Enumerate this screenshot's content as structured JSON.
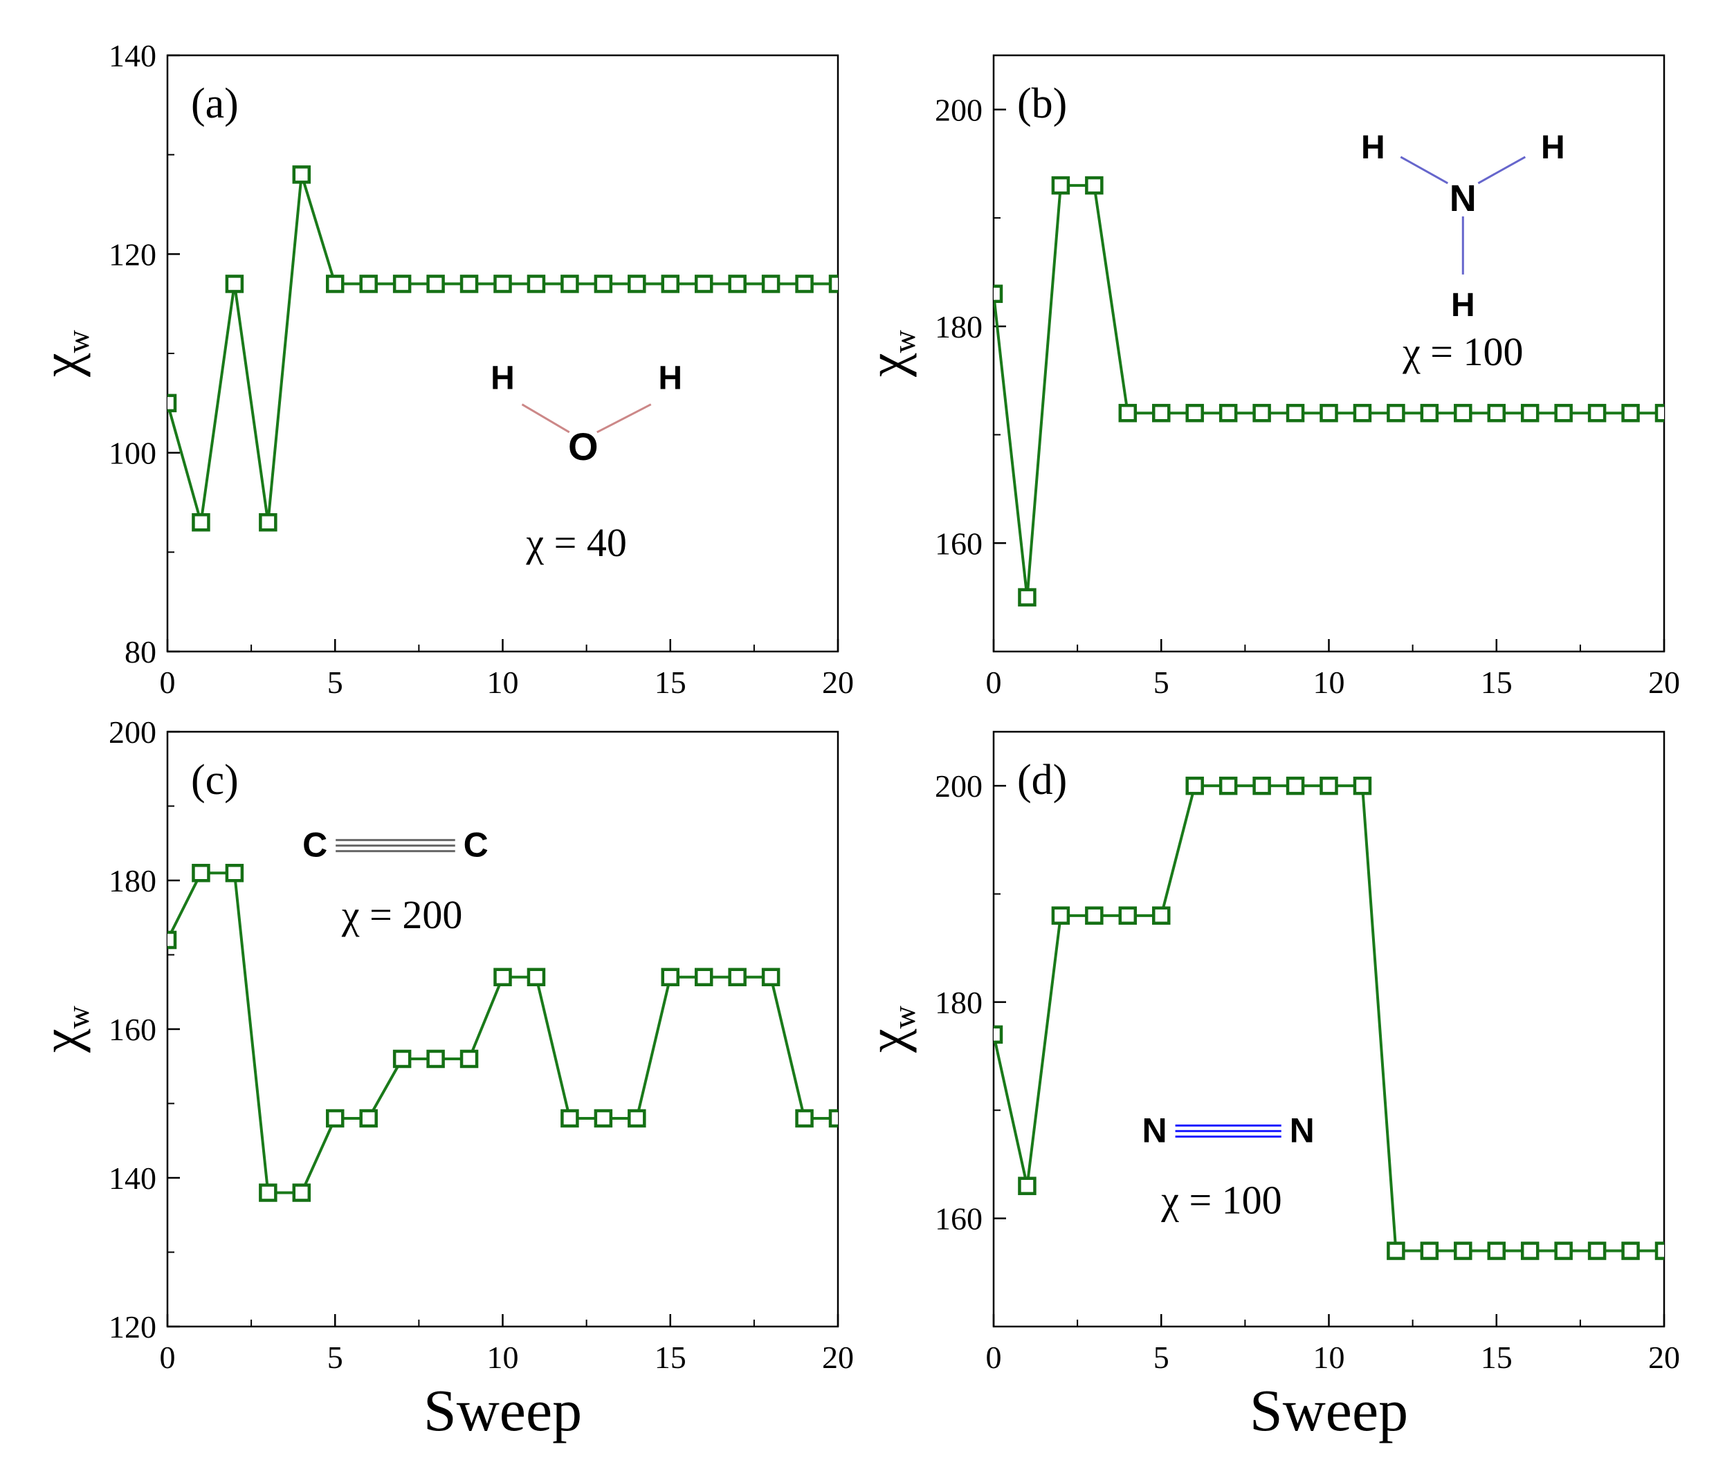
{
  "figure": {
    "xlabel": "Sweep",
    "ylabel_main": "χ",
    "ylabel_sub": "w",
    "line_color": "#1a7a1a",
    "line_color_dark": "#157015"
  },
  "chart_data": [
    {
      "type": "line",
      "panel_label": "(a)",
      "annotation": "χ = 40",
      "molecule": {
        "atoms": [
          {
            "symbol": "H",
            "color": "#5f7a7a"
          },
          {
            "symbol": "O",
            "color": "#ff1a1a"
          },
          {
            "symbol": "H",
            "color": "#5f7a7a"
          }
        ]
      },
      "xlim": [
        0,
        20
      ],
      "ylim": [
        80,
        140
      ],
      "xticks": [
        0,
        5,
        10,
        15,
        20
      ],
      "xtick_labels": [
        "0",
        "5",
        "10",
        "15",
        "20"
      ],
      "yticks": [
        80,
        100,
        120,
        140
      ],
      "ytick_labels": [
        "80",
        "100",
        "120",
        "140"
      ],
      "xlabel": "",
      "series": [
        {
          "x": [
            0,
            1,
            2,
            3,
            4,
            5,
            6,
            7,
            8,
            9,
            10,
            11,
            12,
            13,
            14,
            15,
            16,
            17,
            18,
            19,
            20
          ],
          "values": [
            105,
            93,
            117,
            93,
            128,
            117,
            117,
            117,
            117,
            117,
            117,
            117,
            117,
            117,
            117,
            117,
            117,
            117,
            117,
            117,
            117
          ]
        }
      ]
    },
    {
      "type": "line",
      "panel_label": "(b)",
      "annotation": "χ = 100",
      "molecule": {
        "atoms": [
          {
            "symbol": "H",
            "color": "#5f7a7a"
          },
          {
            "symbol": "H",
            "color": "#5f7a7a"
          },
          {
            "symbol": "N",
            "color": "#1a1aff"
          },
          {
            "symbol": "H",
            "color": "#5f7a7a"
          }
        ]
      },
      "xlim": [
        0,
        20
      ],
      "ylim": [
        150,
        205
      ],
      "xticks": [
        0,
        5,
        10,
        15,
        20
      ],
      "xtick_labels": [
        "0",
        "5",
        "10",
        "15",
        "20"
      ],
      "yticks": [
        160,
        180,
        200
      ],
      "ytick_labels": [
        "160",
        "180",
        "200"
      ],
      "xlabel": "",
      "series": [
        {
          "x": [
            0,
            1,
            2,
            3,
            4,
            5,
            6,
            7,
            8,
            9,
            10,
            11,
            12,
            13,
            14,
            15,
            16,
            17,
            18,
            19,
            20
          ],
          "values": [
            183,
            155,
            193,
            193,
            172,
            172,
            172,
            172,
            172,
            172,
            172,
            172,
            172,
            172,
            172,
            172,
            172,
            172,
            172,
            172,
            172
          ]
        }
      ]
    },
    {
      "type": "line",
      "panel_label": "(c)",
      "annotation": "χ = 200",
      "molecule": {
        "atoms": [
          {
            "symbol": "C",
            "color": "#3d4f4f"
          },
          {
            "symbol": "C",
            "color": "#3d4f4f"
          }
        ]
      },
      "xlim": [
        0,
        20
      ],
      "ylim": [
        120,
        200
      ],
      "xticks": [
        0,
        5,
        10,
        15,
        20
      ],
      "xtick_labels": [
        "0",
        "5",
        "10",
        "15",
        "20"
      ],
      "yticks": [
        120,
        140,
        160,
        180,
        200
      ],
      "ytick_labels": [
        "120",
        "140",
        "160",
        "180",
        "200"
      ],
      "xlabel": "Sweep",
      "series": [
        {
          "x": [
            0,
            1,
            2,
            3,
            4,
            5,
            6,
            7,
            8,
            9,
            10,
            11,
            12,
            13,
            14,
            15,
            16,
            17,
            18,
            19,
            20
          ],
          "values": [
            172,
            181,
            181,
            138,
            138,
            148,
            148,
            156,
            156,
            156,
            167,
            167,
            148,
            148,
            148,
            167,
            167,
            167,
            167,
            148,
            148
          ]
        }
      ]
    },
    {
      "type": "line",
      "panel_label": "(d)",
      "annotation": "χ = 100",
      "molecule": {
        "atoms": [
          {
            "symbol": "N",
            "color": "#1a1aff"
          },
          {
            "symbol": "N",
            "color": "#1a1aff"
          }
        ]
      },
      "xlim": [
        0,
        20
      ],
      "ylim": [
        150,
        205
      ],
      "xticks": [
        0,
        5,
        10,
        15,
        20
      ],
      "xtick_labels": [
        "0",
        "5",
        "10",
        "15",
        "20"
      ],
      "yticks": [
        160,
        180,
        200
      ],
      "ytick_labels": [
        "160",
        "180",
        "200"
      ],
      "xlabel": "Sweep",
      "series": [
        {
          "x": [
            0,
            1,
            2,
            3,
            4,
            5,
            6,
            7,
            8,
            9,
            10,
            11,
            12,
            13,
            14,
            15,
            16,
            17,
            18,
            19,
            20
          ],
          "values": [
            177,
            163,
            188,
            188,
            188,
            188,
            200,
            200,
            200,
            200,
            200,
            200,
            157,
            157,
            157,
            157,
            157,
            157,
            157,
            157,
            157
          ]
        }
      ]
    }
  ]
}
